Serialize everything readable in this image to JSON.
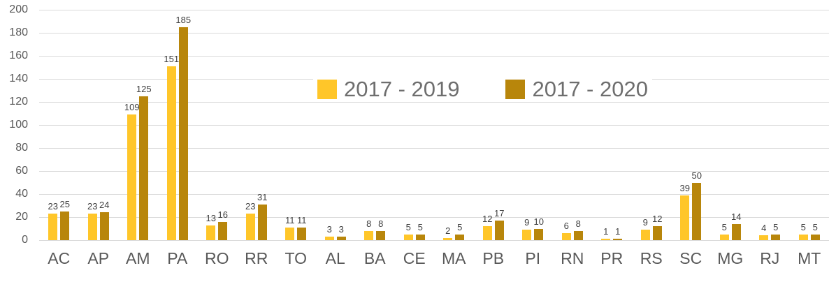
{
  "chart_data": {
    "type": "bar",
    "title": "",
    "xlabel": "",
    "ylabel": "",
    "categories": [
      "AC",
      "AP",
      "AM",
      "PA",
      "RO",
      "RR",
      "TO",
      "AL",
      "BA",
      "CE",
      "MA",
      "PB",
      "PI",
      "RN",
      "PR",
      "RS",
      "SC",
      "MG",
      "RJ",
      "MT"
    ],
    "series": [
      {
        "name": "2017 - 2019",
        "color": "#FFC629",
        "values": [
          23,
          23,
          109,
          151,
          13,
          23,
          11,
          3,
          8,
          5,
          2,
          12,
          9,
          6,
          1,
          9,
          39,
          5,
          4,
          5
        ]
      },
      {
        "name": "2017 - 2020",
        "color": "#B8860B",
        "values": [
          25,
          24,
          125,
          185,
          16,
          31,
          11,
          3,
          8,
          5,
          5,
          17,
          10,
          8,
          1,
          12,
          50,
          14,
          5,
          5
        ]
      }
    ],
    "ylim": [
      0,
      200
    ],
    "yticks": [
      0,
      20,
      40,
      60,
      80,
      100,
      120,
      140,
      160,
      180,
      200
    ],
    "grid": true,
    "legend_position": "center",
    "colors": {
      "gridline": "#d9d9d9",
      "axis_text": "#595959",
      "value_label_text": "#404040",
      "legend_text": "#6e6e6e"
    }
  }
}
